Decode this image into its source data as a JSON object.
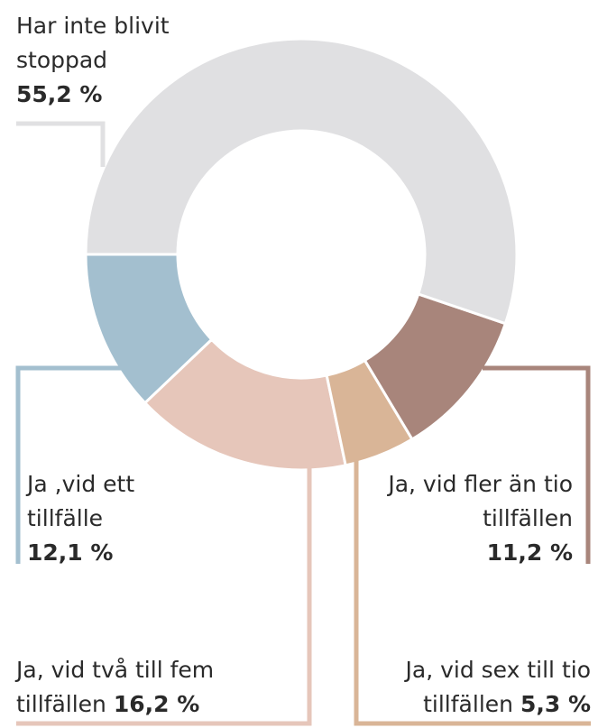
{
  "chart_data": {
    "type": "donut",
    "categories": [
      "Har inte blivit stoppad",
      "Ja, vid fler än tio tillfällen",
      "Ja, vid sex till tio tillfällen",
      "Ja, vid två till fem tillfällen",
      "Ja ,vid ett tillfälle"
    ],
    "values": [
      55.2,
      11.2,
      5.3,
      16.2,
      12.1
    ],
    "value_labels": [
      "55,2 %",
      "11,2 %",
      "5,3 %",
      "16,2 %",
      "12,1 %"
    ],
    "colors": [
      "#e0e0e2",
      "#a8857b",
      "#d9b597",
      "#e6c6ba",
      "#a3bfcf"
    ]
  }
}
